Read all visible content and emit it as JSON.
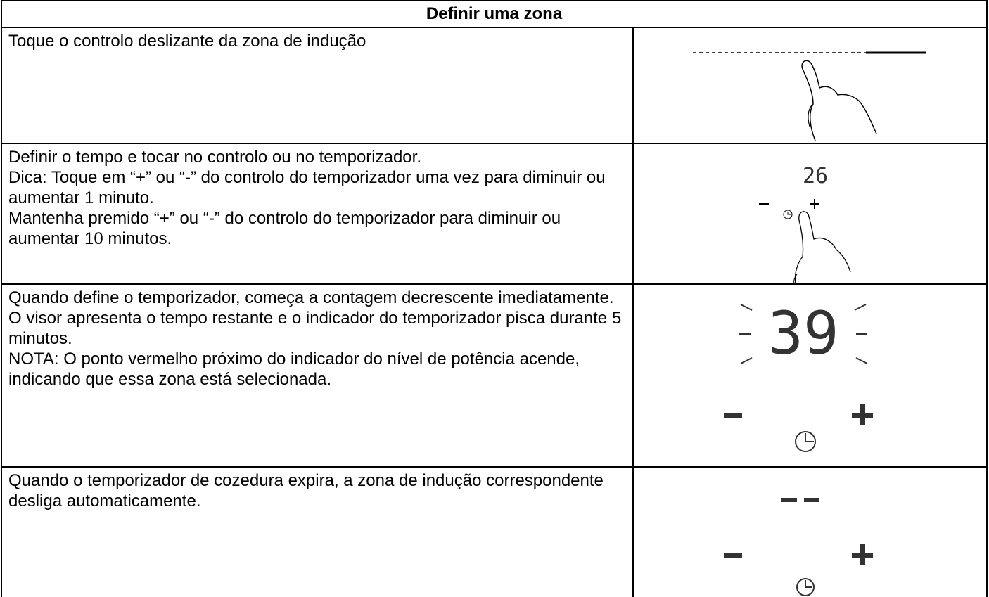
{
  "header": {
    "title": "Definir uma zona"
  },
  "rows": [
    {
      "text": [
        "Toque o controlo deslizante da zona de indução"
      ]
    },
    {
      "text": [
        "Definir o tempo e tocar no controlo ou no temporizador.",
        "Dica: Toque em “+” ou “-” do controlo do temporizador uma vez para diminuir ou aumentar 1 minuto.",
        "Mantenha premido “+” ou “-” do controlo do temporizador para diminuir ou aumentar 10 minutos."
      ],
      "display": "26"
    },
    {
      "text": [
        "Quando define o temporizador, começa a contagem decrescente imediatamente. O visor apresenta o tempo restante e o indicador do temporizador pisca durante 5 minutos.",
        "NOTA: O ponto vermelho próximo do indicador do nível de potência acende, indicando que essa zona está selecionada."
      ],
      "display": "39"
    },
    {
      "text": [
        "Quando o temporizador de cozedura expira, a zona de indução correspondente desliga automaticamente."
      ]
    }
  ]
}
